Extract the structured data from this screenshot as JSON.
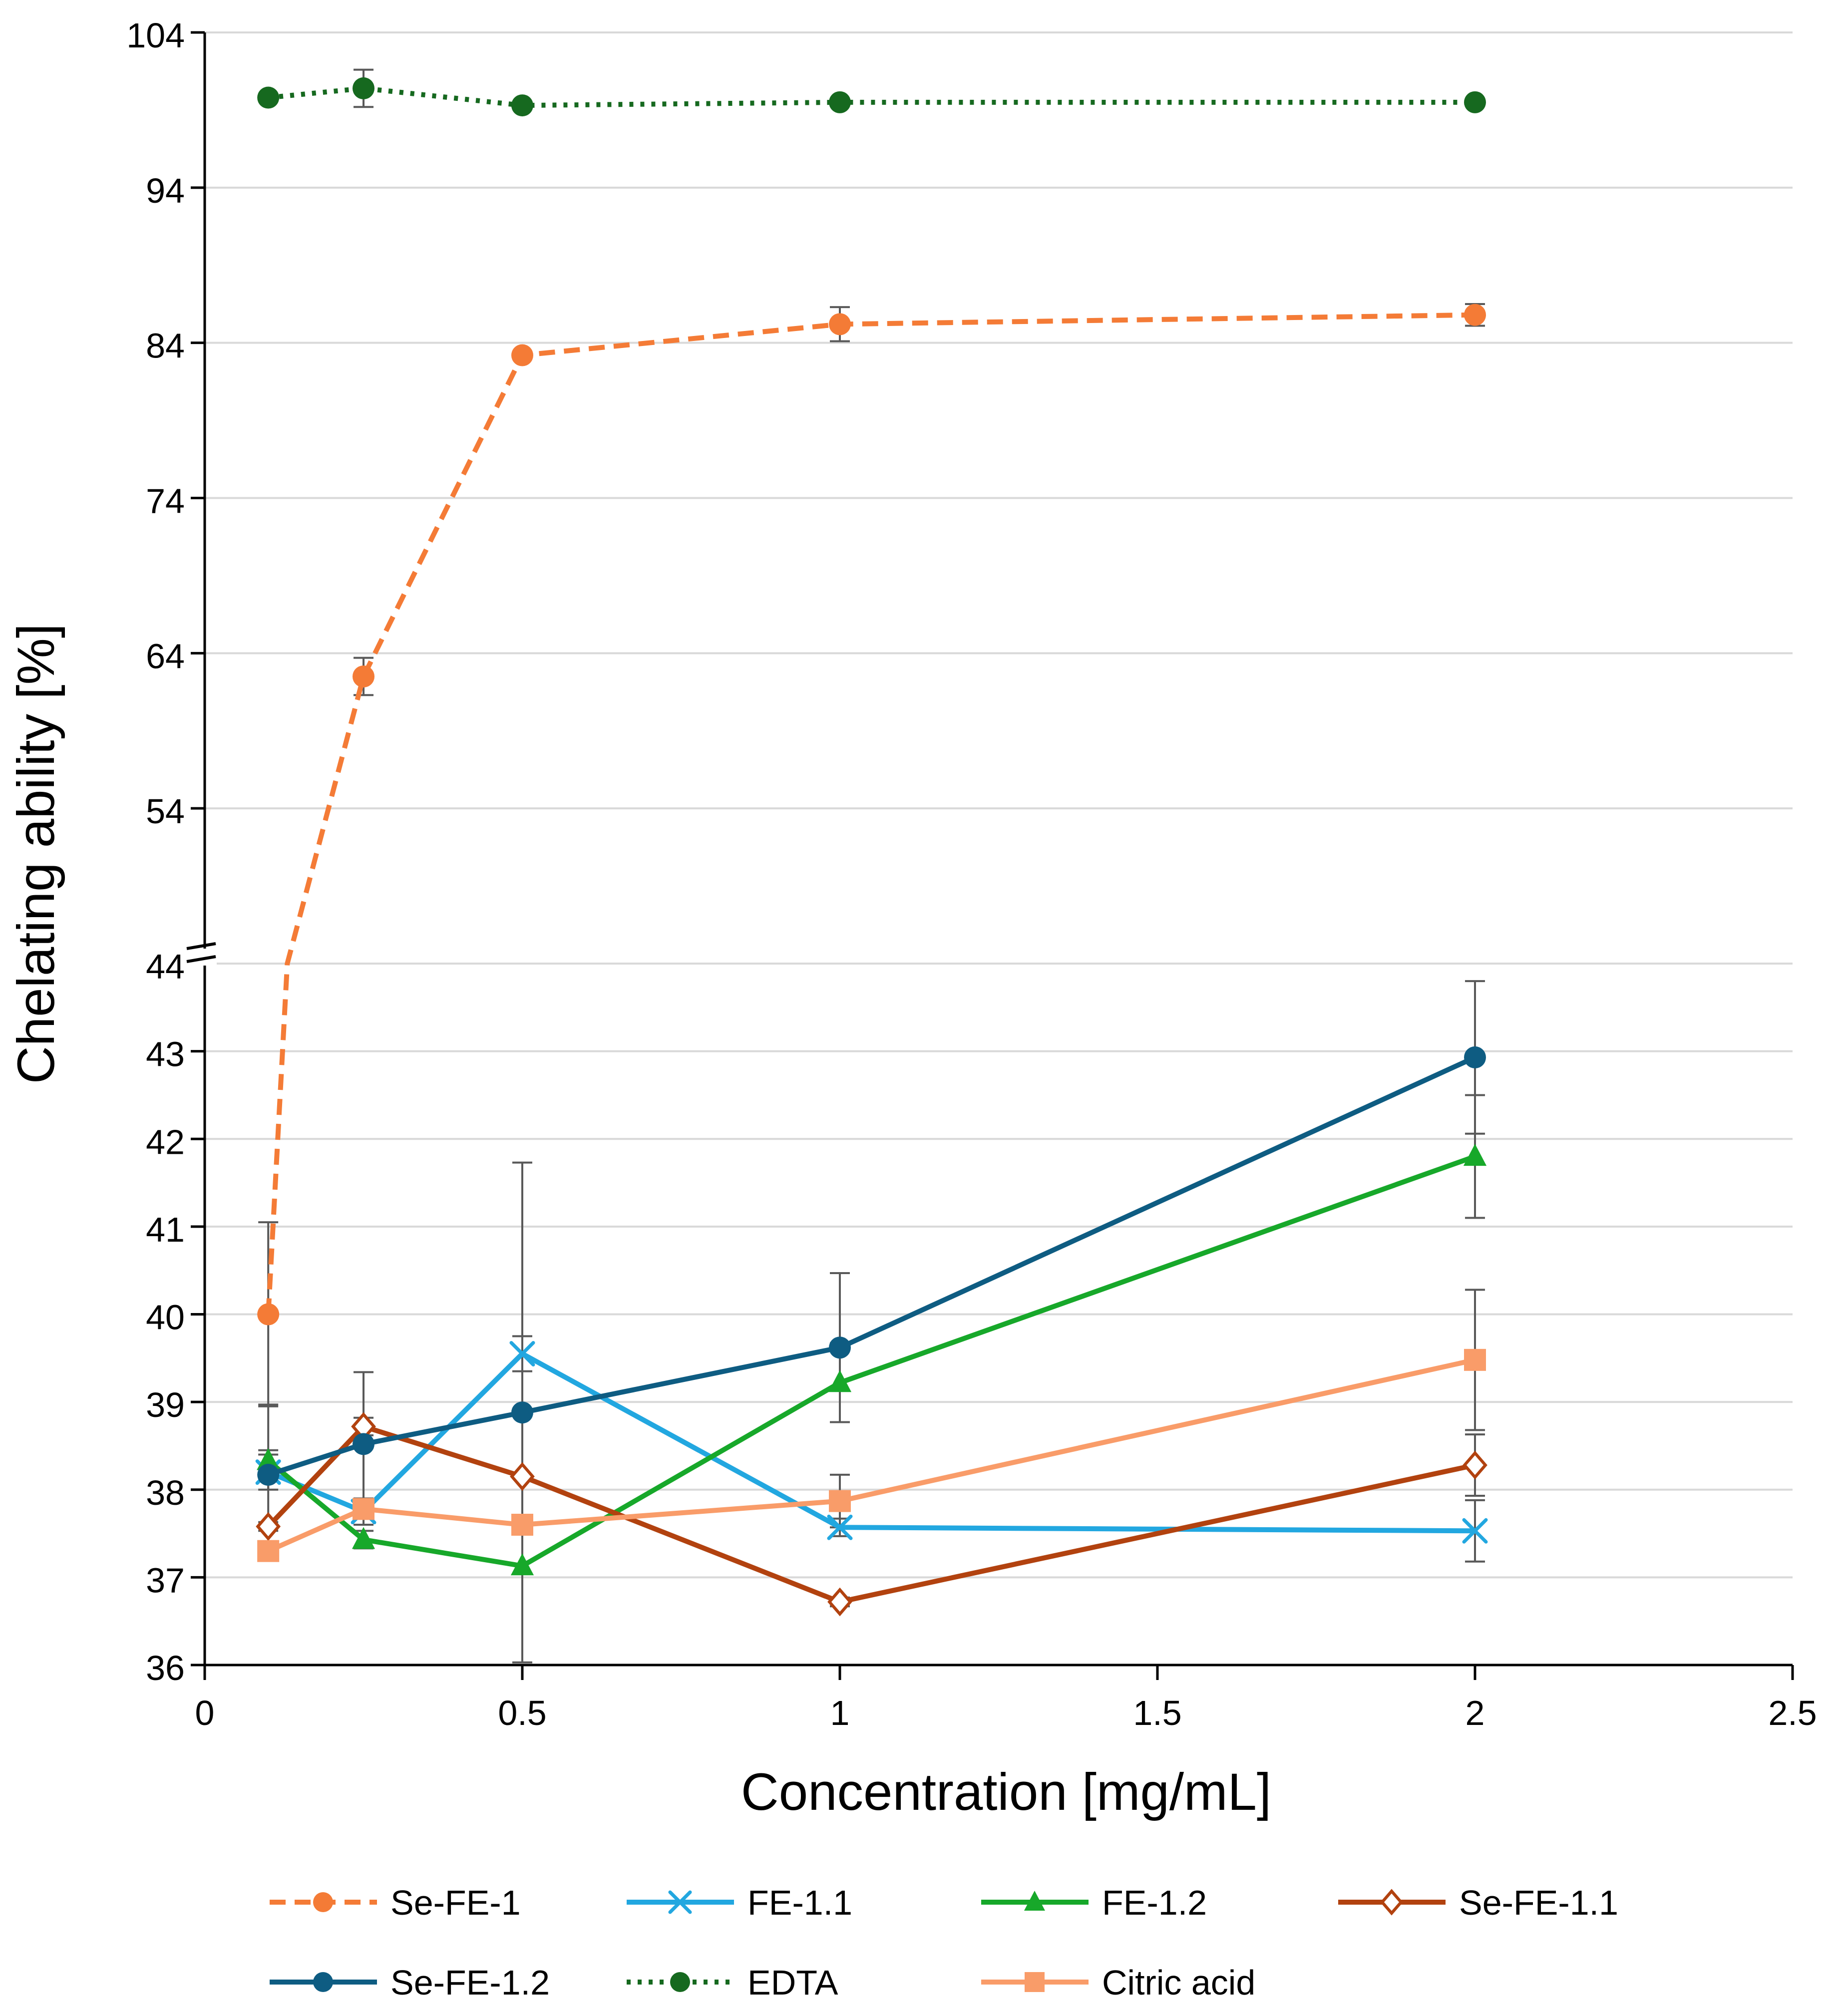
{
  "chart_data": {
    "type": "line",
    "title": "",
    "xlabel": "Concentration [mg/mL]",
    "ylabel": "Chelating ability [%]",
    "xlim": [
      0,
      2.5
    ],
    "x_ticks": [
      0,
      0.5,
      1,
      1.5,
      2,
      2.5
    ],
    "x_tick_labels": [
      "0",
      "0.5",
      "1",
      "1.5",
      "2",
      "2.5"
    ],
    "y_axis_break": {
      "lower_range": [
        36,
        44
      ],
      "upper_range": [
        44,
        104
      ]
    },
    "y_ticks": [
      36,
      37,
      38,
      39,
      40,
      41,
      42,
      43,
      44,
      54,
      64,
      74,
      84,
      94,
      104
    ],
    "y_tick_labels": [
      "36",
      "37",
      "38",
      "39",
      "40",
      "41",
      "42",
      "43",
      "44",
      "54",
      "64",
      "74",
      "84",
      "94",
      "104"
    ],
    "grid": "horizontal",
    "legend_position": "bottom",
    "series": [
      {
        "name": "Se-FE-1",
        "color": "#F47B36",
        "line_style": "dashed",
        "marker": "circle",
        "x": [
          0.1,
          0.13,
          0.25,
          0.5,
          1,
          2
        ],
        "y": [
          40.0,
          44.0,
          62.5,
          83.2,
          85.2,
          85.8
        ],
        "marker_on_point": [
          true,
          false,
          true,
          true,
          true,
          true
        ],
        "error": [
          1.05,
          0,
          1.2,
          0,
          1.1,
          0.7
        ]
      },
      {
        "name": "FE-1.1",
        "color": "#22A7E0",
        "line_style": "solid",
        "marker": "x",
        "x": [
          0.1,
          0.25,
          0.5,
          1,
          2
        ],
        "y": [
          38.2,
          37.75,
          39.55,
          37.57,
          37.53
        ],
        "error": [
          0.2,
          0.15,
          0.2,
          0.1,
          0.35
        ]
      },
      {
        "name": "FE-1.2",
        "color": "#17A82A",
        "line_style": "solid",
        "marker": "triangle",
        "x": [
          0.1,
          0.25,
          0.5,
          1,
          2
        ],
        "y": [
          38.33,
          37.43,
          37.13,
          39.22,
          41.8
        ],
        "error": [
          0.12,
          0.1,
          0.0,
          0.45,
          0.7
        ]
      },
      {
        "name": "Se-FE-1.1",
        "color": "#B2420F",
        "line_style": "solid",
        "marker": "diamond-open",
        "x": [
          0.1,
          0.25,
          0.5,
          1,
          2
        ],
        "y": [
          37.58,
          38.72,
          38.15,
          36.72,
          38.28
        ],
        "error": [
          0.05,
          0.1,
          0.0,
          0.05,
          0.35
        ]
      },
      {
        "name": "Se-FE-1.2",
        "color": "#0E5C82",
        "line_style": "solid",
        "marker": "circle",
        "x": [
          0.1,
          0.25,
          0.5,
          1,
          2
        ],
        "y": [
          38.17,
          38.52,
          38.88,
          39.62,
          42.93
        ],
        "error": [
          0.8,
          0.82,
          2.85,
          0.85,
          0.87
        ]
      },
      {
        "name": "EDTA",
        "color": "#16691F",
        "line_style": "dotted",
        "marker": "circle",
        "x": [
          0.1,
          0.25,
          0.5,
          1,
          2
        ],
        "y": [
          99.8,
          100.4,
          99.3,
          99.5,
          99.5
        ],
        "error": [
          0,
          1.2,
          0,
          0,
          0
        ]
      },
      {
        "name": "Citric acid",
        "color": "#F99C69",
        "line_style": "solid",
        "marker": "square",
        "x": [
          0.1,
          0.25,
          0.5,
          1,
          2
        ],
        "y": [
          37.3,
          37.78,
          37.6,
          37.87,
          39.48
        ],
        "error": [
          0,
          0.1,
          0.1,
          0.3,
          0.8
        ]
      }
    ]
  }
}
